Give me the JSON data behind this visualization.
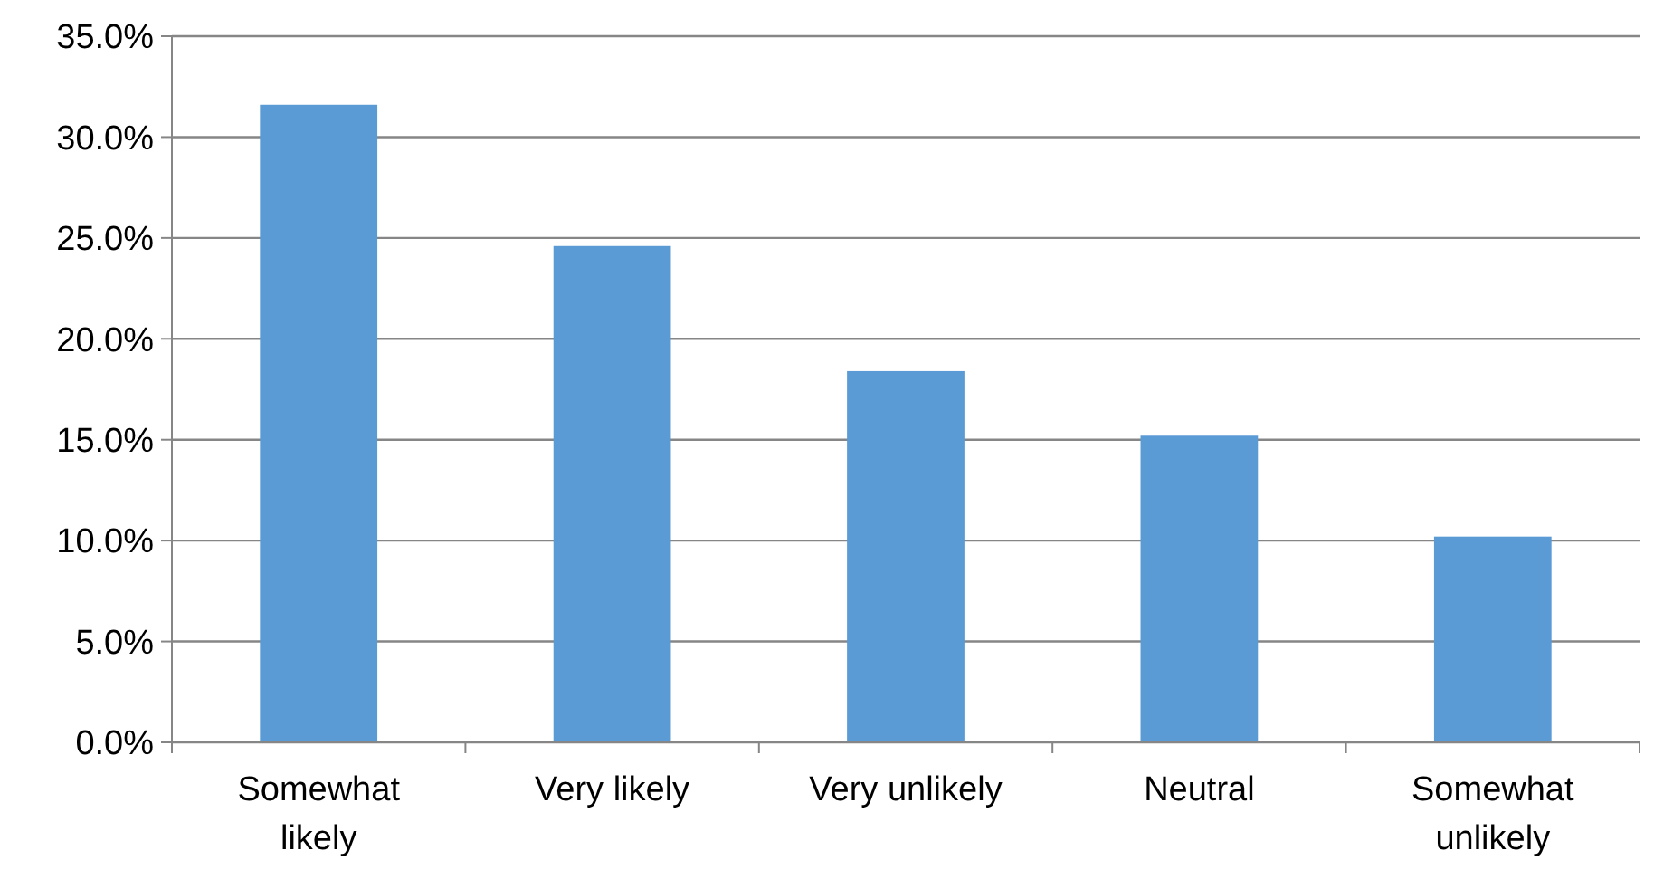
{
  "chart_data": {
    "type": "bar",
    "categories": [
      "Somewhat likely",
      "Very likely",
      "Very unlikely",
      "Neutral",
      "Somewhat unlikely"
    ],
    "values": [
      31.6,
      24.6,
      18.4,
      15.2,
      10.2
    ],
    "color": "#5b9bd5",
    "ylim": [
      0,
      35
    ],
    "yticks": [
      {
        "value": 0,
        "label": "0.0%"
      },
      {
        "value": 5,
        "label": "5.0%"
      },
      {
        "value": 10,
        "label": "10.0%"
      },
      {
        "value": 15,
        "label": "15.0%"
      },
      {
        "value": 20,
        "label": "20.0%"
      },
      {
        "value": 25,
        "label": "25.0%"
      },
      {
        "value": 30,
        "label": "30.0%"
      },
      {
        "value": 35,
        "label": "35.0%"
      }
    ],
    "grid": "y"
  }
}
